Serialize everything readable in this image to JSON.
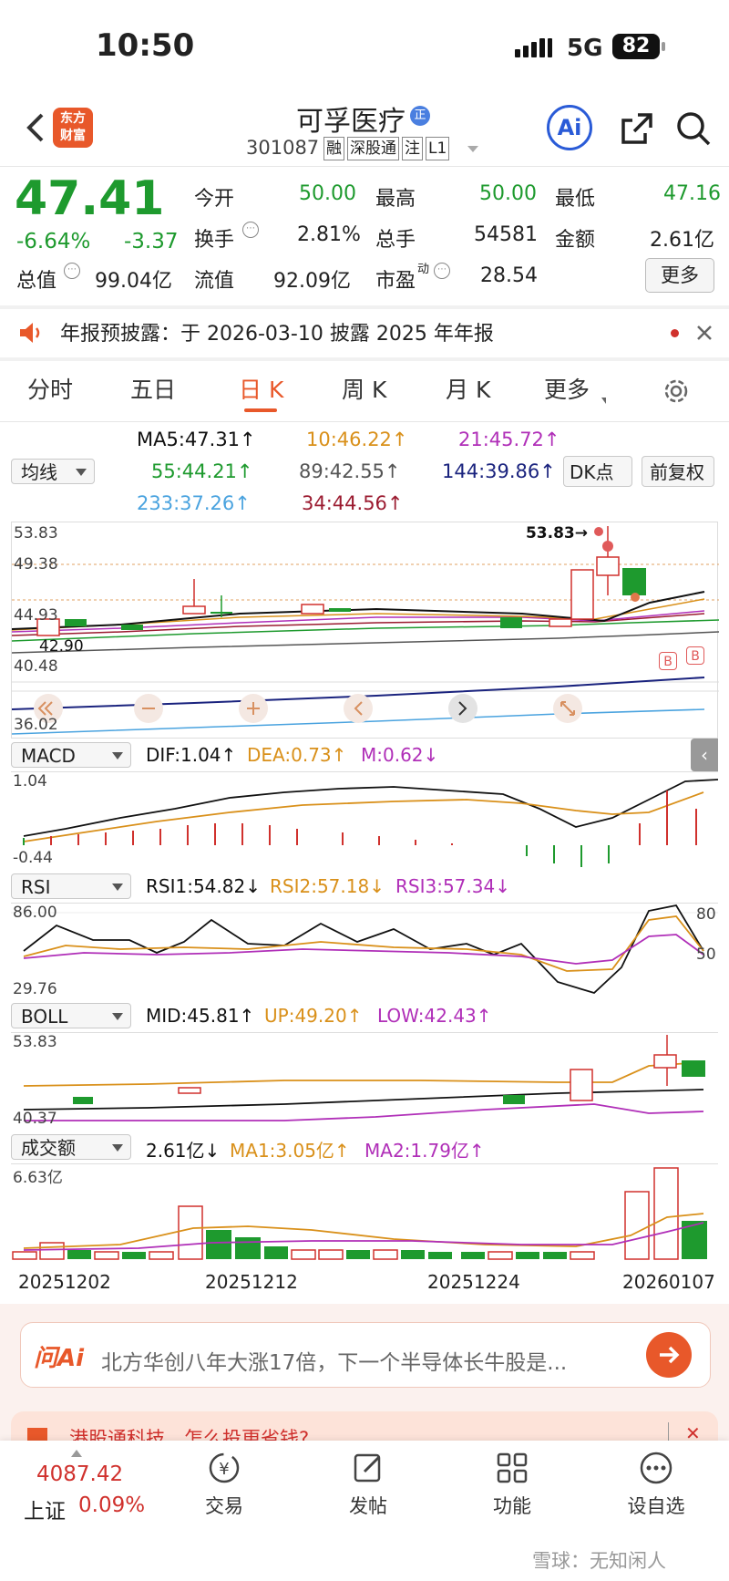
{
  "status_bar": {
    "time": "10:50",
    "network": "5G",
    "battery": "82"
  },
  "header": {
    "back_icon": "chevron-left-icon",
    "logo_text_line1": "东方",
    "logo_text_line2": "财富",
    "stock_name": "可孚医疗",
    "stock_name_badge": "正",
    "stock_code": "301087",
    "tags": [
      "融",
      "深股通",
      "注",
      "L1"
    ],
    "ai_label": "Ai"
  },
  "quote": {
    "price": "47.41",
    "change_pct": "-6.64%",
    "change": "-3.37",
    "fields": {
      "open_label": "今开",
      "open": "50.00",
      "high_label": "最高",
      "high": "50.00",
      "low_label": "最低",
      "low": "47.16",
      "turnover_label": "换手",
      "turnover": "2.81%",
      "volume_label": "总手",
      "volume": "54581",
      "amount_label": "金额",
      "amount": "2.61亿",
      "mktcap_label": "总值",
      "mktcap": "99.04亿",
      "float_label": "流值",
      "float": "92.09亿",
      "pe_label": "市盈",
      "pe_sup": "动",
      "pe": "28.54"
    },
    "more_button": "更多"
  },
  "notice": {
    "text": "年报预披露：于 2026-03-10 披露 2025 年年报"
  },
  "tabs": [
    "分时",
    "五日",
    "日 K",
    "周 K",
    "月 K",
    "更多"
  ],
  "active_tab": "日 K",
  "ma_legend": {
    "selector": "均线",
    "ma5": "MA5:47.31↑",
    "ma10": "10:46.22↑",
    "ma21": "21:45.72↑",
    "ma55": "55:44.21↑",
    "ma89": "89:42.55↑",
    "ma144": "144:39.86↑",
    "ma233": "233:37.26↑",
    "ma34": "34:44.56↑",
    "dk_button": "DK点",
    "adjust_button": "前复权"
  },
  "kline": {
    "price_labels": [
      "53.83",
      "49.38",
      "44.93",
      "40.48",
      "36.02"
    ],
    "high_marker": "53.83→",
    "low_marker": "42.90",
    "buy_markers": [
      "B",
      "B"
    ]
  },
  "macd": {
    "selector": "MACD",
    "dif": "DIF:1.04↑",
    "dea": "DEA:0.73↑",
    "m": "M:0.62↓",
    "top": "1.04",
    "bottom": "-0.44"
  },
  "rsi": {
    "selector": "RSI",
    "rsi1": "RSI1:54.82↓",
    "rsi2": "RSI2:57.18↓",
    "rsi3": "RSI3:57.34↓",
    "top": "86.00",
    "bottom": "29.76",
    "right_top": "80",
    "right_mid": "50"
  },
  "boll": {
    "selector": "BOLL",
    "mid": "MID:45.81↑",
    "up": "UP:49.20↑",
    "low": "LOW:42.43↑",
    "top": "53.83",
    "bottom": "40.37"
  },
  "volume": {
    "selector": "成交额",
    "value": "2.61亿↓",
    "ma1": "MA1:3.05亿↑",
    "ma2": "MA2:1.79亿↑",
    "top": "6.63亿"
  },
  "dates": [
    "20251202",
    "20251212",
    "20251224",
    "20260107"
  ],
  "ai_bar": {
    "label": "问Ai",
    "placeholder": "北方华创八年大涨17倍，下一个半导体长牛股是..."
  },
  "promo": {
    "text": "港股通科技，怎么投更省钱?"
  },
  "bottom_nav": {
    "index_value": "4087.42",
    "index_name": "上证",
    "index_pct": "0.09%",
    "items": [
      "交易",
      "发帖",
      "功能",
      "设自选"
    ]
  },
  "watermark": "雪球：无知闲人",
  "colors": {
    "up": "#d0312d",
    "down": "#1e9a2e",
    "accent": "#2a5bd7",
    "brand": "#e8582a"
  },
  "chart_data": [
    {
      "type": "line",
      "title": "",
      "x": [
        "20251202",
        "20251212",
        "20251224",
        "20260107"
      ],
      "series": [
        {
          "name": "MA5",
          "values": [
            42.6,
            44.2,
            44.8,
            47.31
          ]
        },
        {
          "name": "MA10",
          "values": [
            42.4,
            43.7,
            44.5,
            46.22
          ]
        },
        {
          "name": "MA21",
          "values": [
            42.3,
            43.2,
            44.2,
            45.72
          ]
        },
        {
          "name": "MA55",
          "values": [
            41.8,
            42.8,
            43.6,
            44.21
          ]
        },
        {
          "name": "MA89",
          "values": [
            41.0,
            41.6,
            42.1,
            42.55
          ]
        },
        {
          "name": "MA144",
          "values": [
            38.4,
            38.9,
            39.4,
            39.86
          ]
        },
        {
          "name": "MA233",
          "values": [
            36.1,
            36.5,
            36.9,
            37.26
          ]
        }
      ],
      "ylim": [
        36.02,
        53.83
      ]
    },
    {
      "type": "bar",
      "categories": [
        "20251202",
        "20251212",
        "20251224",
        "20260107"
      ],
      "series": [
        {
          "name": "MA1",
          "values": [
            1.0,
            1.9,
            1.3,
            3.05
          ]
        },
        {
          "name": "MA2",
          "values": [
            0.9,
            1.4,
            1.2,
            1.79
          ]
        }
      ],
      "ylim": [
        0,
        6.63
      ]
    }
  ]
}
